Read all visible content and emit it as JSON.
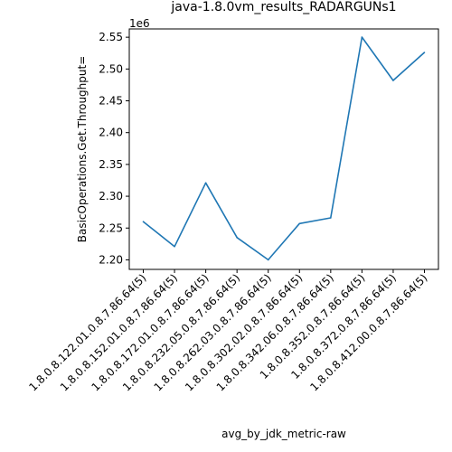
{
  "chart_data": {
    "type": "line",
    "title": "java-1.8.0vm_results_RADARGUNs1",
    "xlabel": "avg_by_jdk_metric-raw",
    "ylabel": "BasicOperations.Get.Throughput=",
    "y_offset_label": "1e6",
    "categories": [
      "1.8.0.8.122.01.0.8.7.86.64(5)",
      "1.8.0.8.152.01.0.8.7.86.64(5)",
      "1.8.0.8.172.01.0.8.7.86.64(5)",
      "1.8.0.8.232.05.0.8.7.86.64(5)",
      "1.8.0.8.262.03.0.8.7.86.64(5)",
      "1.8.0.8.302.02.0.8.7.86.64(5)",
      "1.8.0.8.342.06.0.8.7.86.64(5)",
      "1.8.0.8.352.0.8.7.86.64(5)",
      "1.8.0.8.372.0.8.7.86.64(5)",
      "1.8.0.8.412.00.0.8.7.86.64(5)"
    ],
    "series": [
      {
        "values": [
          2.26,
          2.221,
          2.321,
          2.235,
          2.2,
          2.257,
          2.266,
          2.55,
          2.482,
          2.526
        ]
      }
    ],
    "y_ticks": [
      "2.20",
      "2.25",
      "2.30",
      "2.35",
      "2.40",
      "2.45",
      "2.50",
      "2.55"
    ],
    "ylim": [
      2.185,
      2.563
    ],
    "color": "#1f77b4",
    "grid": false,
    "legend": "none"
  }
}
